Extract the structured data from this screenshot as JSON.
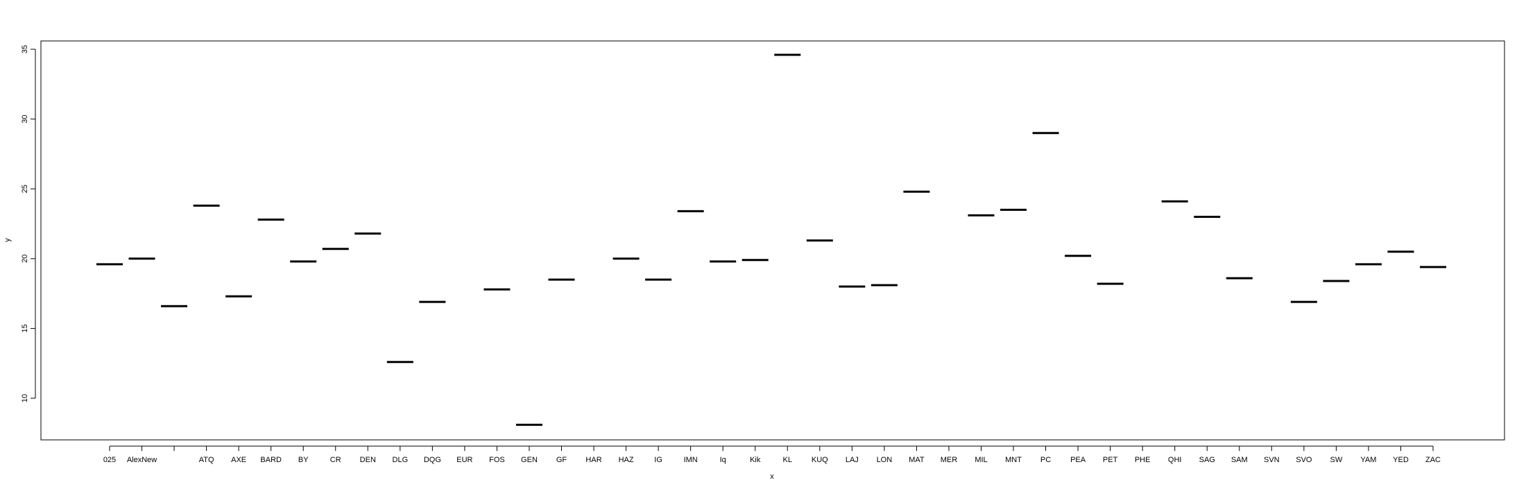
{
  "chart_data": {
    "type": "box",
    "title": "",
    "xlabel": "x",
    "ylabel": "y",
    "ylim": [
      8,
      35.5
    ],
    "yticks": [
      10,
      15,
      20,
      25,
      30,
      35
    ],
    "grid": false,
    "categories": [
      "025",
      "AlexNew",
      "",
      "ATQ",
      "AXE",
      "BARD",
      "BY",
      "CR",
      "DEN",
      "DLG",
      "DQG",
      "EUR",
      "FOS",
      "GEN",
      "GF",
      "HAR",
      "HAZ",
      "IG",
      "IMN",
      "Iq",
      "Kik",
      "KL",
      "KUQ",
      "LAJ",
      "LON",
      "MAT",
      "MER",
      "MIL",
      "MNT",
      "PC",
      "PEA",
      "PET",
      "PHE",
      "QHI",
      "SAG",
      "SAM",
      "SVN",
      "SVO",
      "SW",
      "YAM",
      "YED",
      "ZAC"
    ],
    "values": [
      19.6,
      20.0,
      16.6,
      23.8,
      17.3,
      22.8,
      19.8,
      20.7,
      21.8,
      12.6,
      16.9,
      null,
      17.8,
      8.1,
      18.5,
      null,
      20.0,
      18.5,
      23.4,
      19.8,
      19.9,
      34.6,
      21.3,
      18.0,
      18.1,
      24.8,
      null,
      23.1,
      23.5,
      29.0,
      20.2,
      18.2,
      null,
      24.1,
      23.0,
      18.6,
      null,
      16.9,
      18.4,
      19.6,
      20.5,
      19.4
    ]
  }
}
